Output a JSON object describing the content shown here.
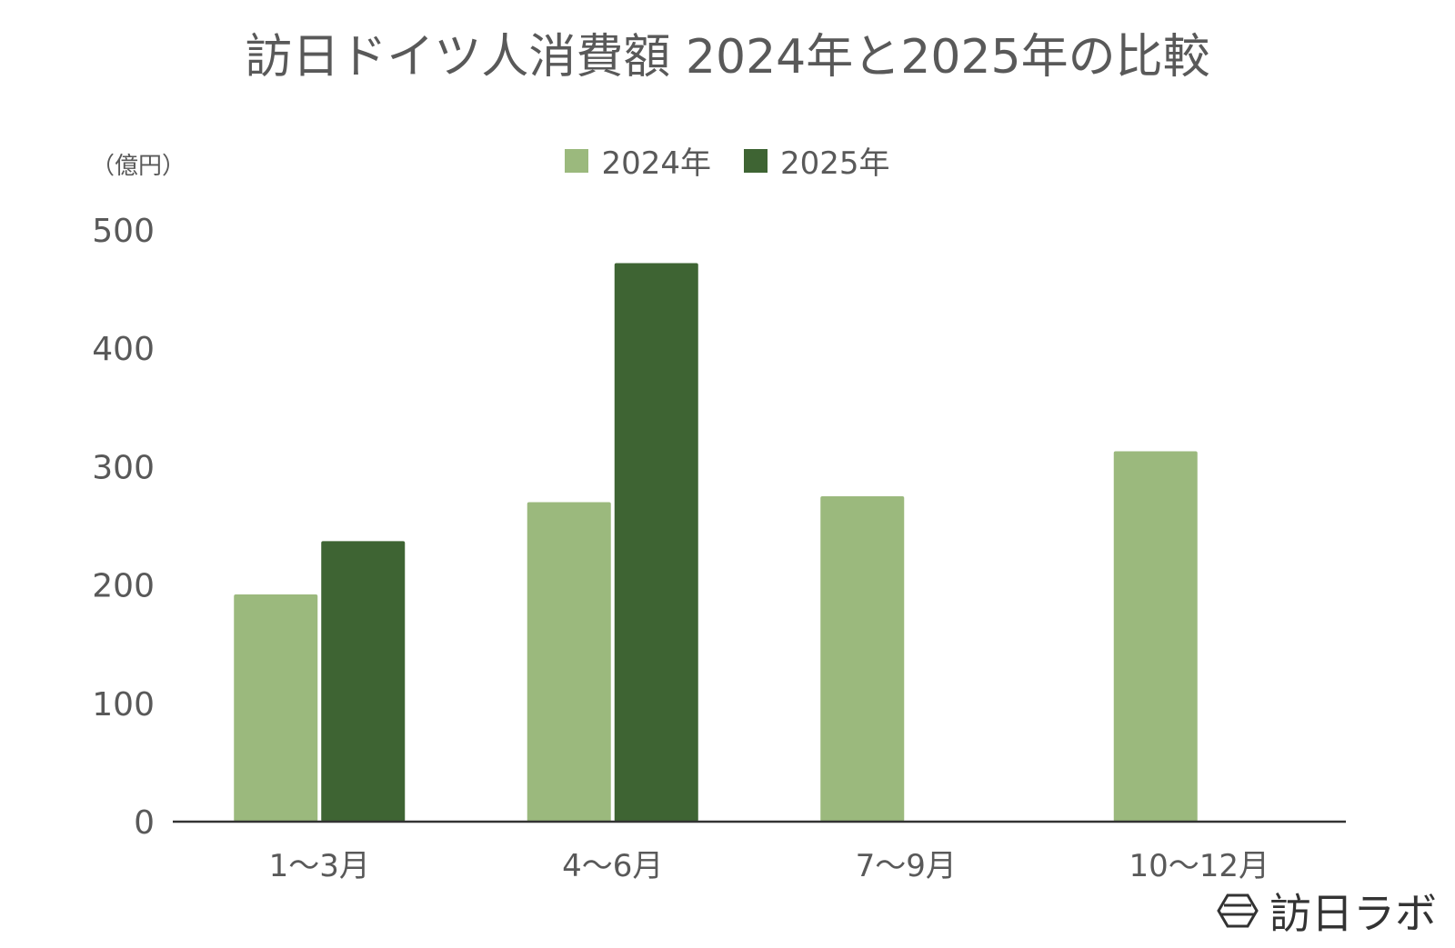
{
  "chart_data": {
    "type": "bar",
    "title": "訪日ドイツ人消費額 2024年と2025年の比較",
    "unit_label": "（億円）",
    "categories": [
      "1～3月",
      "4～6月",
      "7～9月",
      "10～12月"
    ],
    "series": [
      {
        "name": "2024年",
        "color": "#9bb97d",
        "values": [
          192,
          270,
          275,
          313
        ]
      },
      {
        "name": "2025年",
        "color": "#3e6433",
        "values": [
          237,
          472,
          null,
          null
        ]
      }
    ],
    "ylim": [
      0,
      500
    ],
    "yticks": [
      0,
      100,
      200,
      300,
      400,
      500
    ],
    "legend_position": "top-center",
    "grid": false
  },
  "brand": {
    "icon": "hexagon-logo-icon",
    "text": "訪日ラボ"
  }
}
